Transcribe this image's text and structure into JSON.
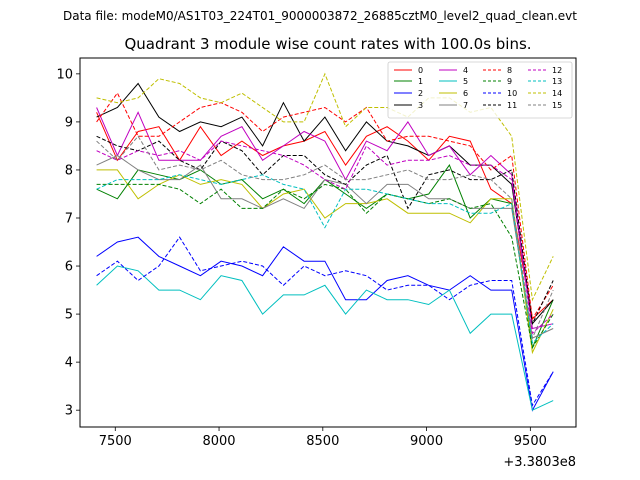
{
  "chart_data": {
    "type": "line",
    "file_label": "Data file: modeM0/AS1T03_224T01_9000003872_26885cztM0_level2_quad_clean.evt",
    "title": "Quadrant 3 module wise count rates with 100.0s bins.",
    "offset_label": "+3.3803e8",
    "xlabel": "",
    "ylabel": "",
    "xlim": [
      7330,
      9720
    ],
    "ylim": [
      2.65,
      10.33
    ],
    "xticks": [
      7500,
      8000,
      8500,
      9000,
      9500
    ],
    "yticks": [
      3,
      4,
      5,
      6,
      7,
      8,
      9,
      10
    ],
    "x": [
      7410,
      7510,
      7610,
      7710,
      7810,
      7910,
      8010,
      8110,
      8210,
      8310,
      8410,
      8510,
      8610,
      8710,
      8810,
      8910,
      9010,
      9110,
      9210,
      9310,
      9410,
      9510,
      9610
    ],
    "series": [
      {
        "name": "0",
        "color": "#ff0000",
        "dash": false,
        "values": [
          9.2,
          8.2,
          8.8,
          8.9,
          8.2,
          8.9,
          8.3,
          8.6,
          8.3,
          8.5,
          8.6,
          8.8,
          8.1,
          8.7,
          8.9,
          8.6,
          8.2,
          8.7,
          8.6,
          7.6,
          7.3,
          4.9,
          5.3
        ]
      },
      {
        "name": "1",
        "color": "#008000",
        "dash": false,
        "values": [
          7.6,
          7.4,
          8.0,
          7.9,
          7.8,
          8.0,
          7.7,
          7.8,
          7.4,
          7.6,
          7.3,
          7.8,
          7.5,
          7.2,
          7.5,
          7.4,
          7.5,
          8.1,
          7.0,
          7.4,
          7.3,
          4.3,
          5.3
        ]
      },
      {
        "name": "2",
        "color": "#0000ff",
        "dash": false,
        "values": [
          6.2,
          6.5,
          6.6,
          6.2,
          6.0,
          5.8,
          6.1,
          6.0,
          5.8,
          6.4,
          6.1,
          6.1,
          5.3,
          5.3,
          5.7,
          5.8,
          5.6,
          5.5,
          5.8,
          5.5,
          5.5,
          3.0,
          3.8
        ]
      },
      {
        "name": "3",
        "color": "#000000",
        "dash": false,
        "values": [
          9.1,
          9.3,
          9.8,
          9.1,
          8.8,
          9.0,
          8.9,
          9.1,
          8.5,
          9.4,
          8.6,
          9.1,
          8.4,
          9.0,
          8.6,
          8.5,
          8.3,
          8.5,
          8.1,
          8.1,
          7.7,
          4.8,
          5.3
        ]
      },
      {
        "name": "4",
        "color": "#c000c0",
        "dash": false,
        "values": [
          9.3,
          8.3,
          9.2,
          8.2,
          8.2,
          8.2,
          8.7,
          8.9,
          8.2,
          8.5,
          8.8,
          8.6,
          7.8,
          8.6,
          8.4,
          9.0,
          8.3,
          8.5,
          7.9,
          8.3,
          7.9,
          4.7,
          4.8
        ]
      },
      {
        "name": "5",
        "color": "#00bfbf",
        "dash": false,
        "values": [
          5.6,
          6.0,
          5.9,
          5.5,
          5.5,
          5.3,
          5.8,
          5.7,
          5.0,
          5.4,
          5.4,
          5.6,
          5.0,
          5.5,
          5.3,
          5.3,
          5.2,
          5.5,
          4.6,
          5.0,
          5.0,
          3.0,
          3.2
        ]
      },
      {
        "name": "6",
        "color": "#bfbf00",
        "dash": false,
        "values": [
          8.0,
          8.0,
          7.4,
          7.7,
          7.9,
          7.7,
          7.8,
          7.7,
          7.2,
          7.5,
          7.6,
          7.0,
          7.3,
          7.3,
          7.4,
          7.1,
          7.1,
          7.1,
          6.9,
          7.4,
          7.4,
          4.2,
          5.1
        ]
      },
      {
        "name": "7",
        "color": "#808080",
        "dash": false,
        "values": [
          8.1,
          8.3,
          8.0,
          7.8,
          7.8,
          8.1,
          7.4,
          7.4,
          7.2,
          7.4,
          7.2,
          7.8,
          7.7,
          7.3,
          7.7,
          7.7,
          7.4,
          7.4,
          7.2,
          7.2,
          7.2,
          4.5,
          4.7
        ]
      },
      {
        "name": "8",
        "color": "#ff0000",
        "dash": true,
        "values": [
          9.0,
          9.6,
          8.7,
          8.7,
          9.0,
          9.3,
          9.4,
          9.2,
          8.8,
          9.1,
          9.2,
          9.3,
          9.0,
          9.3,
          8.6,
          8.7,
          8.7,
          8.6,
          8.5,
          8.0,
          8.3,
          4.9,
          5.6
        ]
      },
      {
        "name": "9",
        "color": "#008000",
        "dash": true,
        "values": [
          7.7,
          7.7,
          7.7,
          7.7,
          7.6,
          7.3,
          7.6,
          7.2,
          7.2,
          7.6,
          7.4,
          7.7,
          7.6,
          7.1,
          7.5,
          7.4,
          7.3,
          7.4,
          7.2,
          7.3,
          6.6,
          4.3,
          5.0
        ]
      },
      {
        "name": "10",
        "color": "#0000ff",
        "dash": true,
        "values": [
          5.8,
          6.1,
          5.7,
          6.0,
          6.6,
          5.9,
          6.0,
          6.1,
          6.0,
          5.6,
          6.0,
          5.8,
          5.9,
          5.8,
          5.5,
          5.6,
          5.6,
          5.3,
          5.6,
          5.7,
          5.7,
          3.1,
          3.8
        ]
      },
      {
        "name": "11",
        "color": "#000000",
        "dash": true,
        "values": [
          8.7,
          8.5,
          8.4,
          8.6,
          8.2,
          8.0,
          8.6,
          8.4,
          7.9,
          8.3,
          8.3,
          7.9,
          7.7,
          8.1,
          8.3,
          7.2,
          7.9,
          8.0,
          7.8,
          7.8,
          8.0,
          4.8,
          5.7
        ]
      },
      {
        "name": "12",
        "color": "#c000c0",
        "dash": true,
        "values": [
          8.4,
          8.2,
          8.4,
          8.3,
          8.4,
          8.2,
          8.6,
          8.5,
          8.4,
          8.3,
          8.1,
          7.8,
          7.6,
          8.5,
          8.1,
          8.2,
          8.2,
          8.3,
          8.1,
          8.1,
          7.8,
          4.6,
          5.0
        ]
      },
      {
        "name": "13",
        "color": "#00bfbf",
        "dash": true,
        "values": [
          7.6,
          7.8,
          7.8,
          7.8,
          7.9,
          7.8,
          7.7,
          7.8,
          7.9,
          7.7,
          7.6,
          6.8,
          7.6,
          7.6,
          7.5,
          7.4,
          7.3,
          7.3,
          7.1,
          7.1,
          7.3,
          4.4,
          4.8
        ]
      },
      {
        "name": "14",
        "color": "#bfbf00",
        "dash": true,
        "values": [
          9.5,
          9.4,
          9.5,
          9.9,
          9.8,
          9.5,
          9.4,
          9.6,
          9.3,
          9.0,
          9.0,
          10.0,
          8.9,
          9.3,
          9.3,
          9.1,
          9.5,
          9.5,
          9.2,
          9.3,
          8.7,
          5.3,
          6.2
        ]
      },
      {
        "name": "15",
        "color": "#808080",
        "dash": true,
        "values": [
          8.6,
          8.2,
          8.7,
          8.0,
          8.1,
          8.0,
          8.2,
          7.9,
          7.8,
          7.8,
          7.9,
          8.1,
          7.8,
          7.8,
          7.9,
          8.0,
          7.8,
          7.8,
          7.9,
          7.8,
          7.4,
          4.5,
          5.5
        ]
      }
    ]
  }
}
